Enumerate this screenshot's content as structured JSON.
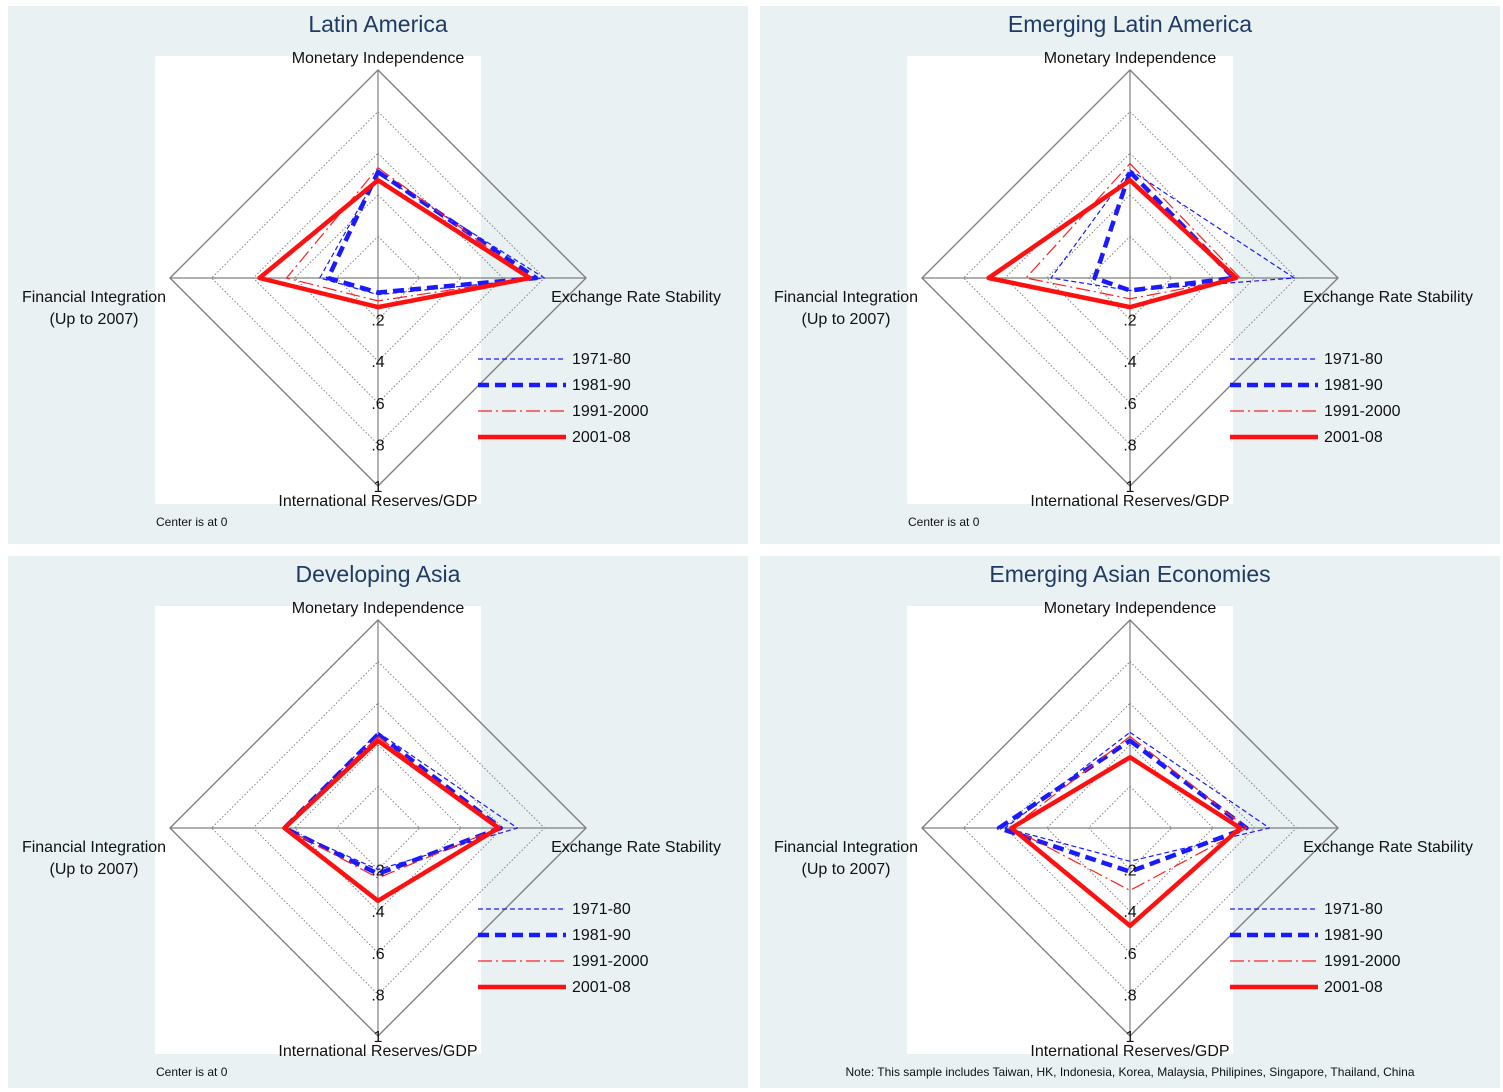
{
  "chart_data": [
    {
      "type": "radar",
      "title": "Latin America",
      "axes": [
        "Monetary Independence",
        "Exchange Rate Stability",
        "International Reserves/GDP",
        "Financial Integration\n(Up to 2007)"
      ],
      "ticks": [
        ".2",
        ".4",
        ".6",
        ".8",
        "1"
      ],
      "range": [
        0,
        1
      ],
      "series": [
        {
          "name": "1971-80",
          "values": [
            0.5,
            0.8,
            0.08,
            0.28
          ],
          "color": "#1a1aff",
          "style": "dash-thin"
        },
        {
          "name": "1981-90",
          "values": [
            0.51,
            0.76,
            0.07,
            0.24
          ],
          "color": "#1a1aff",
          "style": "dash-thick"
        },
        {
          "name": "1991-2000",
          "values": [
            0.53,
            0.73,
            0.11,
            0.44
          ],
          "color": "#ff2020",
          "style": "dashdot-thin"
        },
        {
          "name": "2001-08",
          "values": [
            0.47,
            0.73,
            0.14,
            0.57
          ],
          "color": "#ff1010",
          "style": "solid-thick"
        }
      ],
      "note": "Center is at 0"
    },
    {
      "type": "radar",
      "title": "Emerging Latin America",
      "axes": [
        "Monetary Independence",
        "Exchange Rate Stability",
        "International Reserves/GDP",
        "Financial Integration\n(Up to 2007)"
      ],
      "ticks": [
        ".2",
        ".4",
        ".6",
        ".8",
        "1"
      ],
      "range": [
        0,
        1
      ],
      "series": [
        {
          "name": "1971-80",
          "values": [
            0.52,
            0.79,
            0.06,
            0.38
          ],
          "color": "#1a1aff",
          "style": "dash-thin"
        },
        {
          "name": "1981-90",
          "values": [
            0.51,
            0.5,
            0.06,
            0.17
          ],
          "color": "#1a1aff",
          "style": "dash-thick"
        },
        {
          "name": "1991-2000",
          "values": [
            0.55,
            0.53,
            0.1,
            0.5
          ],
          "color": "#ff2020",
          "style": "dashdot-thin"
        },
        {
          "name": "2001-08",
          "values": [
            0.47,
            0.51,
            0.14,
            0.68
          ],
          "color": "#ff1010",
          "style": "solid-thick"
        }
      ],
      "note": "Center is at 0"
    },
    {
      "type": "radar",
      "title": "Developing Asia",
      "axes": [
        "Monetary Independence",
        "Exchange Rate Stability",
        "International Reserves/GDP",
        "Financial Integration\n(Up to 2007)"
      ],
      "ticks": [
        ".2",
        ".4",
        ".6",
        ".8",
        "1"
      ],
      "range": [
        0,
        1
      ],
      "series": [
        {
          "name": "1971-80",
          "values": [
            0.46,
            0.67,
            0.2,
            0.45
          ],
          "color": "#1a1aff",
          "style": "dash-thin"
        },
        {
          "name": "1981-90",
          "values": [
            0.45,
            0.59,
            0.22,
            0.45
          ],
          "color": "#1a1aff",
          "style": "dash-thick"
        },
        {
          "name": "1991-2000",
          "values": [
            0.44,
            0.58,
            0.24,
            0.45
          ],
          "color": "#ff2020",
          "style": "dashdot-thin"
        },
        {
          "name": "2001-08",
          "values": [
            0.42,
            0.58,
            0.35,
            0.45
          ],
          "color": "#ff1010",
          "style": "solid-thick"
        }
      ],
      "note": "Center is at 0"
    },
    {
      "type": "radar",
      "title": "Emerging Asian Economies",
      "axes": [
        "Monetary Independence",
        "Exchange Rate Stability",
        "International Reserves/GDP",
        "Financial Integration\n(Up to 2007)"
      ],
      "ticks": [
        ".2",
        ".4",
        ".6",
        ".8",
        "1"
      ],
      "range": [
        0,
        1
      ],
      "series": [
        {
          "name": "1971-80",
          "values": [
            0.46,
            0.67,
            0.16,
            0.6
          ],
          "color": "#1a1aff",
          "style": "dash-thin"
        },
        {
          "name": "1981-90",
          "values": [
            0.42,
            0.56,
            0.21,
            0.63
          ],
          "color": "#1a1aff",
          "style": "dash-thick"
        },
        {
          "name": "1991-2000",
          "values": [
            0.44,
            0.56,
            0.3,
            0.57
          ],
          "color": "#ff2020",
          "style": "dashdot-thin"
        },
        {
          "name": "2001-08",
          "values": [
            0.34,
            0.53,
            0.47,
            0.57
          ],
          "color": "#ff1010",
          "style": "solid-thick"
        }
      ],
      "note": "Note: This sample includes Taiwan, HK, Indonesia, Korea, Malaysia, Philipines, Singapore, Thailand, China"
    }
  ]
}
